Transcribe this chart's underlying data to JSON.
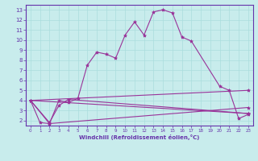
{
  "title": "",
  "xlabel": "Windchill (Refroidissement éolien,°C)",
  "bg_color": "#c8ecec",
  "line_color": "#993399",
  "grid_color": "#aadddd",
  "axis_color": "#6633aa",
  "text_color": "#6633aa",
  "xlim": [
    -0.5,
    23.5
  ],
  "ylim": [
    1.5,
    13.5
  ],
  "xticks": [
    0,
    1,
    2,
    3,
    4,
    5,
    6,
    7,
    8,
    9,
    10,
    11,
    12,
    13,
    14,
    15,
    16,
    17,
    18,
    19,
    20,
    21,
    22,
    23
  ],
  "yticks": [
    2,
    3,
    4,
    5,
    6,
    7,
    8,
    9,
    10,
    11,
    12,
    13
  ],
  "line1_x": [
    0,
    1,
    2,
    3,
    4,
    5,
    6,
    7,
    8,
    9,
    10,
    11,
    12,
    13,
    14,
    15,
    16,
    17,
    20,
    21,
    22,
    23
  ],
  "line1_y": [
    4.0,
    1.8,
    1.7,
    4.0,
    3.8,
    4.2,
    7.5,
    8.8,
    8.6,
    8.2,
    10.5,
    11.8,
    10.5,
    12.8,
    13.0,
    12.7,
    10.3,
    9.9,
    5.4,
    5.0,
    2.2,
    2.6
  ],
  "line2_x": [
    0,
    2,
    3,
    4,
    23
  ],
  "line2_y": [
    4.0,
    1.8,
    3.5,
    4.1,
    2.7
  ],
  "line3_x": [
    0,
    2,
    23
  ],
  "line3_y": [
    4.0,
    1.7,
    3.3
  ],
  "line4_x": [
    0,
    23
  ],
  "line4_y": [
    4.0,
    5.0
  ],
  "line5_x": [
    0,
    23
  ],
  "line5_y": [
    4.0,
    2.7
  ]
}
